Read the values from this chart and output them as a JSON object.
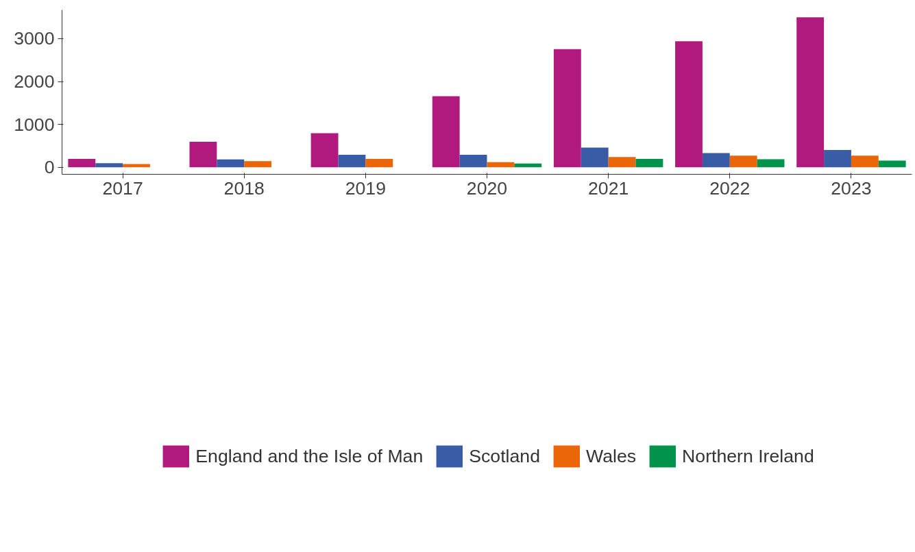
{
  "chart_data": {
    "type": "bar",
    "categories": [
      "2017",
      "2018",
      "2019",
      "2020",
      "2021",
      "2022",
      "2023"
    ],
    "series": [
      {
        "name": "England and the Isle of Man",
        "color": "#b0197e",
        "values": [
          193,
          596,
          794,
          1656,
          2757,
          2938,
          3500
        ]
      },
      {
        "name": "Scotland",
        "color": "#385ca6",
        "values": [
          96,
          182,
          289,
          289,
          459,
          329,
          403
        ]
      },
      {
        "name": "Wales",
        "color": "#eb6608",
        "values": [
          74,
          142,
          193,
          119,
          238,
          272,
          272
        ]
      },
      {
        "name": "Northern Ireland",
        "color": "#00934c",
        "values": [
          null,
          0,
          0,
          85,
          193,
          187,
          153
        ]
      }
    ],
    "ylim": [
      -165,
      3670
    ],
    "yticks": [
      0,
      1000,
      2000,
      3000
    ],
    "grid": false,
    "legend": "bottom"
  }
}
